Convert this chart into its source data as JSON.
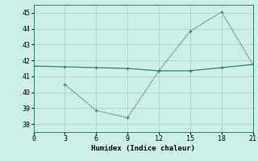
{
  "xlabel": "Humidex (Indice chaleur)",
  "xlim": [
    0,
    21
  ],
  "ylim": [
    37.5,
    45.5
  ],
  "xticks": [
    0,
    3,
    6,
    9,
    12,
    15,
    18,
    21
  ],
  "yticks": [
    38,
    39,
    40,
    41,
    42,
    43,
    44,
    45
  ],
  "line1_x": [
    0,
    3,
    6,
    9,
    12,
    15,
    18,
    21
  ],
  "line1_y": [
    41.65,
    41.6,
    41.55,
    41.5,
    41.35,
    41.35,
    41.55,
    41.75
  ],
  "line2_x": [
    3,
    6,
    9,
    12,
    15,
    18,
    21
  ],
  "line2_y": [
    40.5,
    38.85,
    38.4,
    41.35,
    43.85,
    45.05,
    41.75
  ],
  "line_color": "#2d7d78",
  "bg_color": "#ceeee8",
  "grid_color": "#aad4cc"
}
